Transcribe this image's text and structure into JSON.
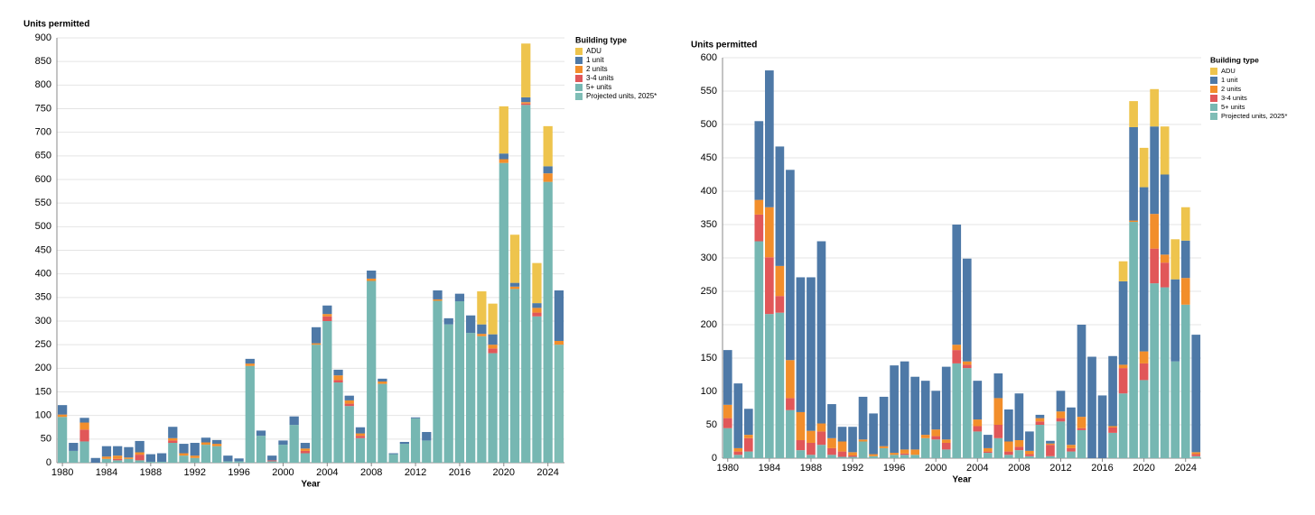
{
  "chart_data": [
    {
      "type": "bar",
      "stacked": true,
      "y_label": "Units permitted",
      "x_label": "Year",
      "legend_title": "Building type",
      "grid": true,
      "categories": [
        "1980",
        null,
        null,
        null,
        "1984",
        null,
        null,
        null,
        "1988",
        null,
        null,
        null,
        "1992",
        null,
        null,
        null,
        "1996",
        null,
        null,
        null,
        "2000",
        null,
        null,
        null,
        "2004",
        null,
        null,
        null,
        "2008",
        null,
        null,
        null,
        "2012",
        null,
        null,
        null,
        "2016",
        null,
        null,
        null,
        "2020",
        null,
        null,
        null,
        "2024",
        null
      ],
      "ylim": [
        0,
        900
      ],
      "yticks": [
        0,
        50,
        100,
        150,
        200,
        250,
        300,
        350,
        400,
        450,
        500,
        550,
        600,
        650,
        700,
        750,
        800,
        850,
        900
      ],
      "series": [
        {
          "name": "ADU",
          "color": "#eec44d",
          "values": [
            0,
            0,
            0,
            0,
            0,
            0,
            0,
            0,
            0,
            0,
            0,
            0,
            0,
            0,
            0,
            0,
            0,
            0,
            0,
            0,
            0,
            0,
            0,
            0,
            0,
            0,
            0,
            0,
            0,
            0,
            0,
            0,
            0,
            0,
            0,
            0,
            0,
            0,
            70,
            65,
            100,
            102,
            114,
            85,
            85,
            0
          ]
        },
        {
          "name": "1 unit",
          "color": "#4e79a7",
          "values": [
            20,
            17,
            10,
            10,
            22,
            20,
            22,
            24,
            16,
            18,
            24,
            20,
            27,
            10,
            8,
            12,
            6,
            10,
            11,
            10,
            9,
            18,
            12,
            34,
            18,
            12,
            10,
            13,
            17,
            6,
            2,
            4,
            2,
            18,
            19,
            13,
            16,
            37,
            20,
            22,
            12,
            8,
            10,
            10,
            15,
            107
          ]
        },
        {
          "name": "2 units",
          "color": "#f28e2b",
          "values": [
            5,
            0,
            15,
            0,
            5,
            7,
            3,
            5,
            0,
            0,
            5,
            5,
            5,
            5,
            5,
            0,
            0,
            5,
            0,
            0,
            0,
            0,
            5,
            3,
            5,
            10,
            7,
            5,
            5,
            5,
            0,
            0,
            0,
            0,
            3,
            0,
            0,
            0,
            5,
            8,
            8,
            5,
            3,
            10,
            18,
            8
          ]
        },
        {
          "name": "3-4 units",
          "color": "#e15759",
          "values": [
            0,
            0,
            25,
            0,
            0,
            3,
            0,
            12,
            0,
            0,
            5,
            0,
            0,
            0,
            0,
            0,
            0,
            0,
            0,
            2,
            0,
            0,
            5,
            0,
            10,
            5,
            5,
            5,
            0,
            0,
            0,
            0,
            0,
            0,
            0,
            0,
            0,
            0,
            0,
            10,
            0,
            0,
            3,
            8,
            0,
            0
          ]
        },
        {
          "name": "5+ units",
          "color": "#76b7b2",
          "values": [
            97,
            25,
            45,
            0,
            8,
            5,
            8,
            5,
            2,
            2,
            42,
            15,
            10,
            38,
            35,
            3,
            3,
            205,
            57,
            3,
            38,
            80,
            20,
            250,
            300,
            170,
            120,
            52,
            385,
            167,
            18,
            40,
            94,
            47,
            343,
            293,
            342,
            275,
            268,
            232,
            635,
            368,
            758,
            310,
            595,
            0
          ]
        },
        {
          "name": "Projected units, 2025*",
          "color": "#7fbdb6",
          "values": [
            0,
            0,
            0,
            0,
            0,
            0,
            0,
            0,
            0,
            0,
            0,
            0,
            0,
            0,
            0,
            0,
            0,
            0,
            0,
            0,
            0,
            0,
            0,
            0,
            0,
            0,
            0,
            0,
            0,
            0,
            0,
            0,
            0,
            0,
            0,
            0,
            0,
            0,
            0,
            0,
            0,
            0,
            0,
            0,
            0,
            250
          ]
        }
      ]
    },
    {
      "type": "bar",
      "stacked": true,
      "y_label": "Units permitted",
      "x_label": "Year",
      "legend_title": "Building type",
      "grid": true,
      "categories": [
        "1980",
        null,
        null,
        null,
        "1984",
        null,
        null,
        null,
        "1988",
        null,
        null,
        null,
        "1992",
        null,
        null,
        null,
        "1996",
        null,
        null,
        null,
        "2000",
        null,
        null,
        null,
        "2004",
        null,
        null,
        null,
        "2008",
        null,
        null,
        null,
        "2012",
        null,
        null,
        null,
        "2016",
        null,
        null,
        null,
        "2020",
        null,
        null,
        null,
        "2024",
        null
      ],
      "ylim": [
        0,
        600
      ],
      "yticks": [
        0,
        50,
        100,
        150,
        200,
        250,
        300,
        350,
        400,
        450,
        500,
        550,
        600
      ],
      "series": [
        {
          "name": "ADU",
          "color": "#eec44d",
          "values": [
            0,
            0,
            0,
            0,
            0,
            0,
            0,
            0,
            0,
            0,
            0,
            0,
            0,
            0,
            0,
            0,
            0,
            0,
            0,
            0,
            0,
            0,
            0,
            0,
            0,
            0,
            0,
            0,
            0,
            0,
            0,
            0,
            0,
            0,
            0,
            0,
            0,
            0,
            30,
            39,
            59,
            56,
            72,
            60,
            50,
            0
          ]
        },
        {
          "name": "1 unit",
          "color": "#4e79a7",
          "values": [
            82,
            97,
            39,
            118,
            205,
            179,
            285,
            202,
            230,
            273,
            51,
            22,
            38,
            64,
            61,
            74,
            131,
            132,
            109,
            81,
            58,
            109,
            180,
            154,
            58,
            20,
            37,
            48,
            70,
            29,
            5,
            4,
            31,
            56,
            138,
            152,
            94,
            105,
            125,
            140,
            246,
            131,
            120,
            123,
            56,
            176
          ]
        },
        {
          "name": "2 units",
          "color": "#f28e2b",
          "values": [
            20,
            5,
            5,
            22,
            75,
            45,
            57,
            42,
            18,
            12,
            15,
            15,
            5,
            3,
            3,
            3,
            3,
            6,
            8,
            5,
            10,
            5,
            8,
            5,
            10,
            5,
            40,
            15,
            10,
            5,
            5,
            2,
            10,
            5,
            17,
            0,
            0,
            2,
            5,
            2,
            18,
            52,
            12,
            0,
            40,
            3
          ]
        },
        {
          "name": "3-4 units",
          "color": "#e15759",
          "values": [
            15,
            5,
            20,
            40,
            85,
            25,
            18,
            15,
            18,
            20,
            10,
            8,
            2,
            0,
            0,
            0,
            0,
            2,
            0,
            0,
            5,
            10,
            20,
            5,
            8,
            2,
            20,
            5,
            5,
            3,
            5,
            17,
            5,
            5,
            3,
            0,
            0,
            8,
            38,
            0,
            25,
            52,
            37,
            0,
            0,
            3
          ]
        },
        {
          "name": "5+ units",
          "color": "#76b7b2",
          "values": [
            45,
            5,
            10,
            325,
            216,
            218,
            72,
            12,
            5,
            20,
            5,
            2,
            2,
            25,
            3,
            15,
            5,
            5,
            5,
            30,
            28,
            13,
            142,
            135,
            40,
            8,
            30,
            5,
            12,
            3,
            50,
            3,
            55,
            10,
            42,
            0,
            0,
            38,
            97,
            354,
            117,
            262,
            256,
            145,
            230,
            0
          ]
        },
        {
          "name": "Projected units, 2025*",
          "color": "#7fbdb6",
          "values": [
            0,
            0,
            0,
            0,
            0,
            0,
            0,
            0,
            0,
            0,
            0,
            0,
            0,
            0,
            0,
            0,
            0,
            0,
            0,
            0,
            0,
            0,
            0,
            0,
            0,
            0,
            0,
            0,
            0,
            0,
            0,
            0,
            0,
            0,
            0,
            0,
            0,
            0,
            0,
            0,
            0,
            0,
            0,
            0,
            0,
            3
          ]
        }
      ]
    }
  ]
}
